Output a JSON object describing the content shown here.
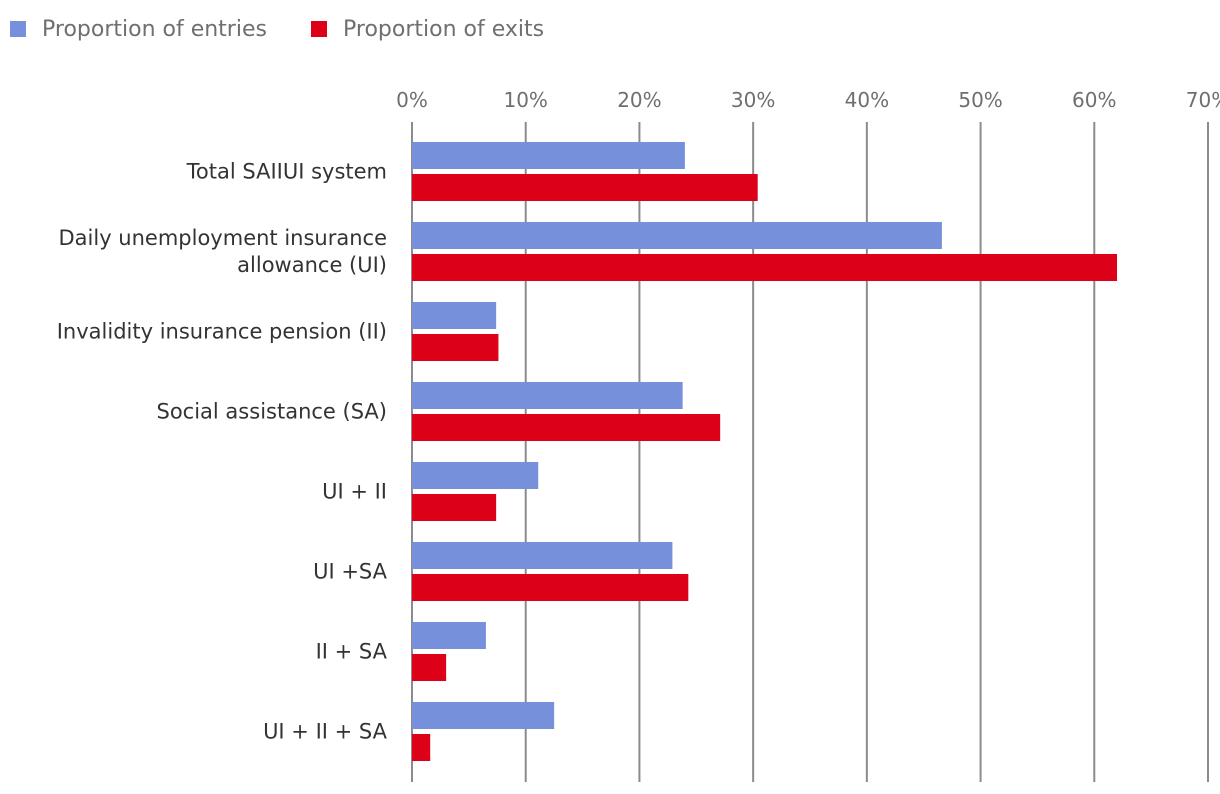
{
  "chart_data": {
    "type": "bar",
    "orientation": "horizontal",
    "title": "",
    "xlabel": "",
    "ylabel": "",
    "categories": [
      [
        "Total SAIIUI system"
      ],
      [
        "Daily unemployment insurance",
        "allowance (UI)"
      ],
      [
        "Invalidity insurance pension (II)"
      ],
      [
        "Social assistance (SA)"
      ],
      [
        "UI + II"
      ],
      [
        "UI +SA"
      ],
      [
        "II + SA"
      ],
      [
        "UI + II + SA"
      ]
    ],
    "series": [
      {
        "name": "Proportion of entries",
        "color": "#7690db",
        "values": [
          24.0,
          46.6,
          7.4,
          23.8,
          11.1,
          22.9,
          6.5,
          12.5
        ]
      },
      {
        "name": "Proportion of exits",
        "color": "#dd0019",
        "values": [
          30.4,
          62.0,
          7.6,
          27.1,
          7.4,
          24.3,
          3.0,
          1.6
        ]
      }
    ],
    "xlim": [
      0,
      70
    ],
    "ticks": [
      0,
      10,
      20,
      30,
      40,
      50,
      60,
      70
    ],
    "tick_labels": [
      "0%",
      "10%",
      "20%",
      "30%",
      "40%",
      "50%",
      "60%",
      "70%"
    ],
    "grid": true,
    "legend_position": "top-left"
  }
}
